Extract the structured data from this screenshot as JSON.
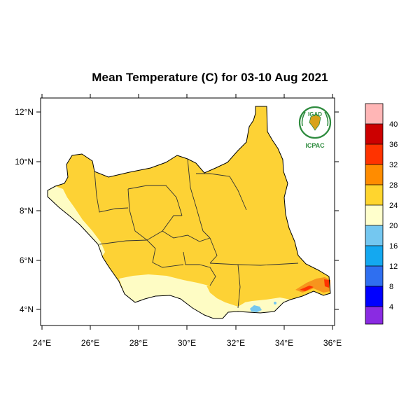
{
  "title": "Mean Temperature (C) for 03-10 Aug 2021",
  "logo": {
    "top_text": "IGAD",
    "bottom_text": "ICPAC"
  },
  "axes": {
    "x_ticks": [
      "24°E",
      "26°E",
      "28°E",
      "30°E",
      "32°E",
      "34°E",
      "36°E"
    ],
    "y_ticks": [
      "12°N",
      "10°N",
      "8°N",
      "6°N",
      "4°N"
    ]
  },
  "colorbar": {
    "labels": [
      "40",
      "36",
      "32",
      "28",
      "24",
      "20",
      "16",
      "12",
      "8",
      "4"
    ],
    "colors": [
      "#ffb6b6",
      "#cc0000",
      "#ff3300",
      "#ff8c00",
      "#ffd52e",
      "#ffffcc",
      "#74c7f0",
      "#14a8f0",
      "#2f6ff0",
      "#0000ff",
      "#8a2be2"
    ]
  },
  "map_colors": {
    "cat_24_28": "#fdd235",
    "cat_20_24": "#fefcc4",
    "cat_28_32": "#f7941d",
    "cat_32_36": "#ff3300",
    "cat_16_20": "#74c7f0"
  }
}
